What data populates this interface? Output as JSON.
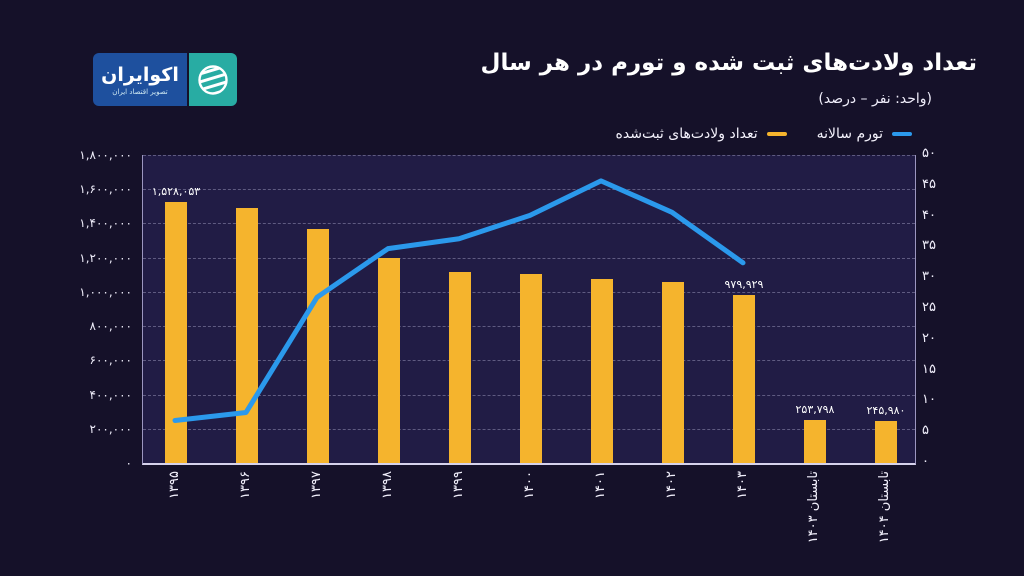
{
  "logo": {
    "name": "اکوایران",
    "tagline": "تصویر اقتصاد ایران",
    "box_color": "#1E509E",
    "accent_color": "#28ACA3"
  },
  "header": {
    "title": "تعداد ولادت‌های ثبت شده و تورم در هر سال",
    "subtitle": "(واحد: نفر – درصد)"
  },
  "legend": [
    {
      "label": "تورم سالانه",
      "color": "#2B99EC",
      "type": "line"
    },
    {
      "label": "تعداد ولادت‌های ثبت‌شده",
      "color": "#F5B42D",
      "type": "bar"
    }
  ],
  "chart_data": {
    "type": "bar+line",
    "title": "تعداد ولادت‌های ثبت شده و تورم در هر سال",
    "subtitle": "(واحد: نفر – درصد)",
    "grid": "dashed-horizontal",
    "legend_position": "top-right",
    "categories": [
      "۱۳۹۵",
      "۱۳۹۶",
      "۱۳۹۷",
      "۱۳۹۸",
      "۱۳۹۹",
      "۱۴۰۰",
      "۱۴۰۱",
      "۱۴۰۲",
      "۱۴۰۳",
      "تابستان ۱۴۰۳",
      "تابستان ۱۴۰۴"
    ],
    "series": [
      {
        "name": "تعداد ولادت‌های ثبت‌شده",
        "type": "bar",
        "axis": "left",
        "color": "#F5B42D",
        "values": [
          1528053,
          1487913,
          1366519,
          1196132,
          1114155,
          1106072,
          1075381,
          1057948,
          979929,
          253798,
          245980
        ],
        "value_labels": [
          "۱,۵۲۸,۰۵۳",
          null,
          null,
          null,
          null,
          null,
          null,
          null,
          "۹۷۹,۹۲۹",
          "۲۵۳,۷۹۸",
          "۲۴۵,۹۸۰"
        ]
      },
      {
        "name": "تورم سالانه",
        "type": "line",
        "axis": "right",
        "color": "#2B99EC",
        "values": [
          6.9,
          8.2,
          26.9,
          34.8,
          36.4,
          40.2,
          45.8,
          40.7,
          32.5,
          null,
          null
        ]
      }
    ],
    "y_left": {
      "min": 0,
      "max": 1800000,
      "step": 200000,
      "tick_labels": [
        "۰",
        "۲۰۰,۰۰۰",
        "۴۰۰,۰۰۰",
        "۶۰۰,۰۰۰",
        "۸۰۰,۰۰۰",
        "۱,۰۰۰,۰۰۰",
        "۱,۲۰۰,۰۰۰",
        "۱,۴۰۰,۰۰۰",
        "۱,۶۰۰,۰۰۰",
        "۱,۸۰۰,۰۰۰"
      ]
    },
    "y_right": {
      "min": 0,
      "max": 50,
      "step": 5,
      "tick_labels": [
        "۰",
        "۵",
        "۱۰",
        "۱۵",
        "۲۰",
        "۲۵",
        "۳۰",
        "۳۵",
        "۴۰",
        "۴۵",
        "۵۰"
      ]
    }
  }
}
